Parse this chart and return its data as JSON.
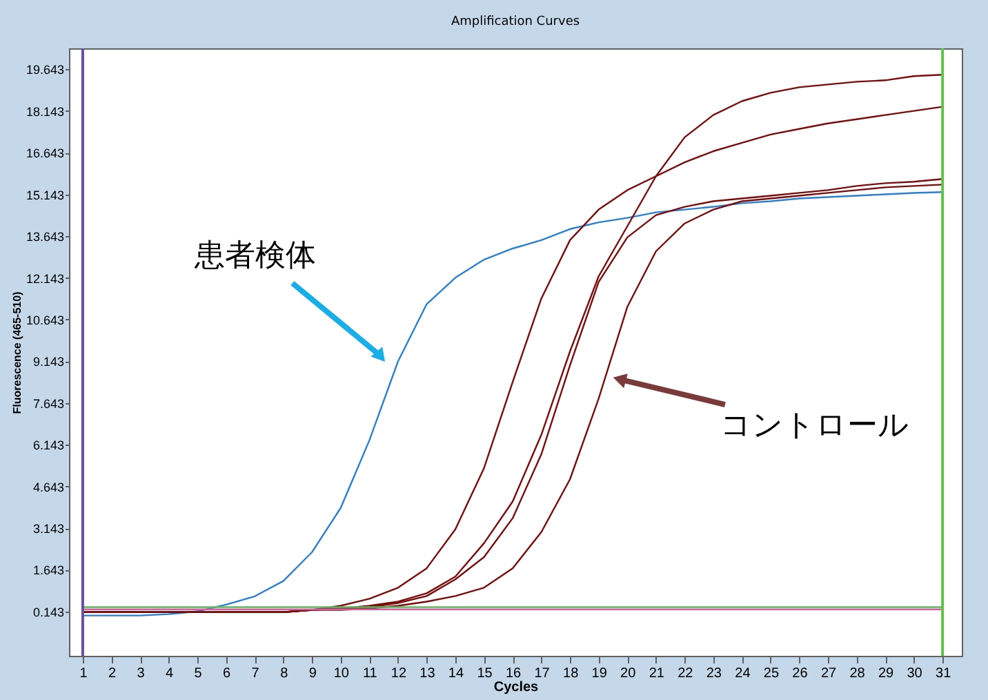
{
  "chart_data": {
    "type": "line",
    "title": "Amplification Curves",
    "xlabel": "Cycles",
    "ylabel": "Fluorescence (465-510)",
    "x": [
      1,
      2,
      3,
      4,
      5,
      6,
      7,
      8,
      9,
      10,
      11,
      12,
      13,
      14,
      15,
      16,
      17,
      18,
      19,
      20,
      21,
      22,
      23,
      24,
      25,
      26,
      27,
      28,
      29,
      30,
      31
    ],
    "series": [
      {
        "color": "#2a7fd0",
        "values": [
          0.0,
          0.0,
          0.0,
          0.05,
          0.15,
          0.39,
          0.69,
          1.24,
          2.28,
          3.87,
          6.3,
          9.14,
          11.2,
          12.15,
          12.8,
          13.2,
          13.5,
          13.9,
          14.14,
          14.3,
          14.5,
          14.6,
          14.7,
          14.83,
          14.9,
          15.0,
          15.05,
          15.1,
          15.15,
          15.2,
          15.23
        ]
      },
      {
        "color": "#7b0c0c",
        "values": [
          0.12,
          0.12,
          0.12,
          0.12,
          0.12,
          0.12,
          0.12,
          0.12,
          0.2,
          0.35,
          0.6,
          1.0,
          1.7,
          3.1,
          5.3,
          8.4,
          11.4,
          13.5,
          14.6,
          15.3,
          15.8,
          16.3,
          16.7,
          17.0,
          17.3,
          17.5,
          17.7,
          17.85,
          18.0,
          18.15,
          18.3
        ]
      },
      {
        "color": "#7b0c0c",
        "values": [
          0.12,
          0.12,
          0.12,
          0.12,
          0.12,
          0.12,
          0.12,
          0.12,
          0.2,
          0.25,
          0.35,
          0.5,
          0.8,
          1.4,
          2.6,
          4.1,
          6.5,
          9.5,
          12.2,
          14.0,
          15.8,
          17.2,
          18.0,
          18.5,
          18.8,
          19.0,
          19.1,
          19.2,
          19.25,
          19.4,
          19.45
        ]
      },
      {
        "color": "#7b0c0c",
        "values": [
          0.12,
          0.12,
          0.12,
          0.12,
          0.12,
          0.12,
          0.12,
          0.12,
          0.2,
          0.25,
          0.3,
          0.45,
          0.7,
          1.3,
          2.1,
          3.5,
          5.8,
          9.0,
          12.0,
          13.6,
          14.4,
          14.7,
          14.9,
          15.0,
          15.1,
          15.2,
          15.3,
          15.45,
          15.55,
          15.6,
          15.7
        ]
      },
      {
        "color": "#7b0c0c",
        "values": [
          0.12,
          0.12,
          0.12,
          0.12,
          0.12,
          0.12,
          0.12,
          0.12,
          0.2,
          0.2,
          0.25,
          0.35,
          0.5,
          0.7,
          1.0,
          1.7,
          3.0,
          4.9,
          7.8,
          11.1,
          13.1,
          14.1,
          14.6,
          14.9,
          15.0,
          15.1,
          15.2,
          15.3,
          15.4,
          15.45,
          15.5
        ]
      },
      {
        "color": "#d45fa0",
        "values": [
          0.22,
          0.22,
          0.22,
          0.22,
          0.22,
          0.22,
          0.22,
          0.22,
          0.22,
          0.22,
          0.22,
          0.22,
          0.22,
          0.22,
          0.22,
          0.22,
          0.22,
          0.22,
          0.22,
          0.22,
          0.22,
          0.22,
          0.22,
          0.22,
          0.22,
          0.22,
          0.22,
          0.22,
          0.22,
          0.22,
          0.22
        ]
      },
      {
        "color": "#5cb85c",
        "values": [
          0.3,
          0.3,
          0.3,
          0.3,
          0.3,
          0.3,
          0.3,
          0.3,
          0.3,
          0.3,
          0.3,
          0.3,
          0.3,
          0.3,
          0.3,
          0.3,
          0.3,
          0.3,
          0.3,
          0.3,
          0.3,
          0.3,
          0.3,
          0.3,
          0.3,
          0.3,
          0.3,
          0.3,
          0.3,
          0.3,
          0.3
        ]
      }
    ],
    "ref_lines": [
      {
        "axis": "x",
        "value": 1,
        "color": "#6a4fa0"
      },
      {
        "axis": "x",
        "value": 31,
        "color": "#5ec24a"
      }
    ],
    "annotations": [
      {
        "text": "患者検体",
        "x": 11.35,
        "y": 9.37
      },
      {
        "text": "コントロール",
        "x": 19.8,
        "y": 8.48
      }
    ],
    "xlim": [
      0.52,
      31.67
    ],
    "ylim": [
      -1.45,
      20.4
    ],
    "xticks": [
      1,
      2,
      3,
      4,
      5,
      6,
      7,
      8,
      9,
      10,
      11,
      12,
      13,
      14,
      15,
      16,
      17,
      18,
      19,
      20,
      21,
      22,
      23,
      24,
      25,
      26,
      27,
      28,
      29,
      30,
      31
    ],
    "yticks": [
      {
        "value": 0.143,
        "label": "0.143"
      },
      {
        "value": 1.643,
        "label": "1.643"
      },
      {
        "value": 3.143,
        "label": "3.143"
      },
      {
        "value": 4.643,
        "label": "4.643"
      },
      {
        "value": 6.143,
        "label": "6.143"
      },
      {
        "value": 7.643,
        "label": "7.643"
      },
      {
        "value": 9.143,
        "label": "9.143"
      },
      {
        "value": 10.643,
        "label": "10.643"
      },
      {
        "value": 12.143,
        "label": "12.143"
      },
      {
        "value": 13.643,
        "label": "13.643"
      },
      {
        "value": 15.143,
        "label": "15.143"
      },
      {
        "value": 16.643,
        "label": "16.643"
      },
      {
        "value": 18.143,
        "label": "18.143"
      },
      {
        "value": 19.643,
        "label": "19.643"
      }
    ],
    "grid": false,
    "legend": false,
    "marker": "none",
    "line_style": "solid"
  }
}
